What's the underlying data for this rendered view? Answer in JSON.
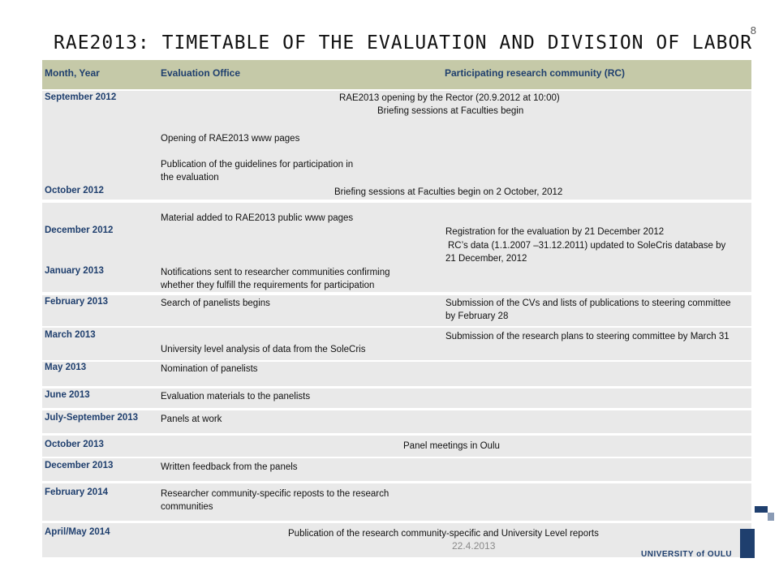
{
  "page_number": "8",
  "title": "RAE2013: TIMETABLE OF THE EVALUATION AND DIVISION OF LABOR",
  "header": {
    "month_year": "Month, Year",
    "evaluation_office": "Evaluation Office",
    "research_community": "Participating research community (RC)"
  },
  "rows": {
    "sep2012": {
      "month": "September 2012",
      "line1": "RAE2013 opening by the Rector (20.9.2012 at  10:00)",
      "line2": "Briefing sessions at Faculties begin",
      "office1": "Opening of RAE2013 www pages",
      "office2a": "Publication of the guidelines for participation in",
      "office2b": "the evaluation"
    },
    "oct2012": {
      "month": "October 2012",
      "text": "Briefing sessions at Faculties begin on 2 October, 2012"
    },
    "dec2012": {
      "month": "December 2012",
      "office": "Material added to RAE2013 public www pages",
      "rc1": "Registration for the evaluation by 21 December 2012",
      "rc2": "RC’s data  (1.1.2007 –31.12.2011) updated to SoleCris database by",
      "rc3": "21 December, 2012"
    },
    "jan2013": {
      "month": "January 2013",
      "office1": "Notifications sent to researcher communities confirming",
      "office2": "whether they fulfill the requirements for participation"
    },
    "feb2013": {
      "month": "February 2013",
      "office": "Search of panelists begins",
      "rc1": "Submission of the CVs and lists of publications to steering committee",
      "rc2": "by February 28"
    },
    "mar2013": {
      "month": "March 2013",
      "rc": "Submission of the research plans to steering committee by March 31",
      "office": "University level analysis of data from the SoleCris"
    },
    "may2013": {
      "month": "May 2013",
      "office": "Nomination of panelists"
    },
    "jun2013": {
      "month": "June 2013",
      "office": "Evaluation materials to the panelists"
    },
    "julsep2013": {
      "month": "July-September 2013",
      "office": "Panels at work"
    },
    "oct2013": {
      "month": "October 2013",
      "text": "Panel meetings in Oulu"
    },
    "dec2013": {
      "month": "December 2013",
      "office": "Written feedback from the panels"
    },
    "feb2014": {
      "month": "February 2014",
      "office1": "Researcher community-specific reposts to the research",
      "office2": "communities"
    },
    "aprmay2014": {
      "month": "April/May 2014",
      "text": "Publication of the research community-specific and University Level reports"
    }
  },
  "footer": {
    "date": "22.4.2013",
    "logo": "UNIVERSITY of OULU"
  },
  "colors": {
    "header_bg": "#c5c9a8",
    "row_bg": "#e9e9e9",
    "accent": "#1f3f6e"
  }
}
